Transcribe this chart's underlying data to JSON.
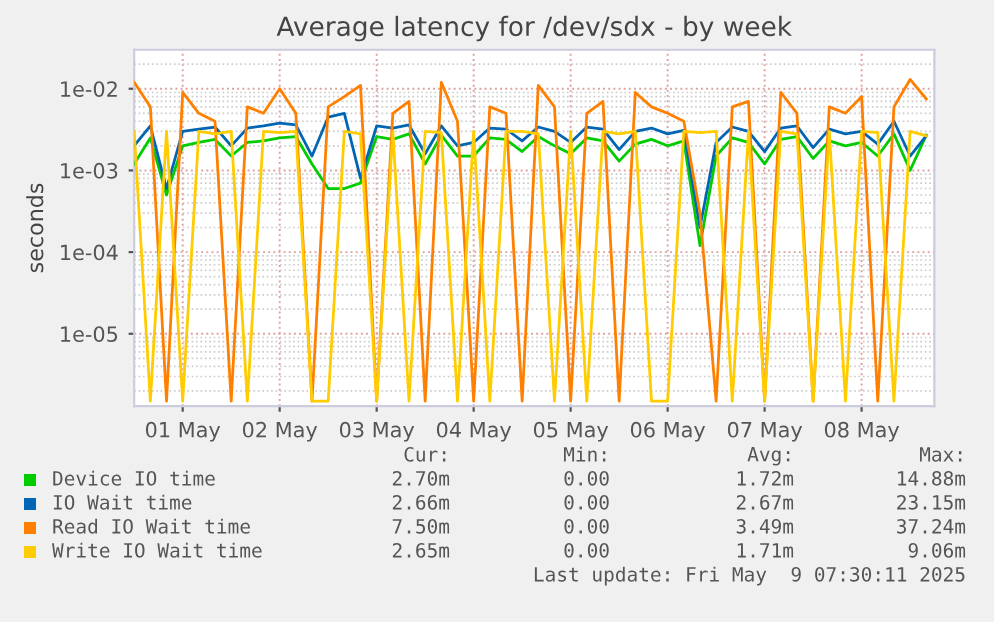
{
  "chart_data": {
    "type": "line",
    "title": "Average latency for /dev/sdx - by week",
    "ylabel": "seconds",
    "x": [
      "2025-05-01T00:00",
      "2025-05-01T04:00",
      "2025-05-01T08:00",
      "2025-05-01T12:00",
      "2025-05-01T16:00",
      "2025-05-01T20:00",
      "2025-05-02T00:00",
      "2025-05-02T04:00",
      "2025-05-02T08:00",
      "2025-05-02T12:00",
      "2025-05-02T16:00",
      "2025-05-02T20:00",
      "2025-05-03T00:00",
      "2025-05-03T04:00",
      "2025-05-03T08:00",
      "2025-05-03T12:00",
      "2025-05-03T16:00",
      "2025-05-03T20:00",
      "2025-05-04T00:00",
      "2025-05-04T04:00",
      "2025-05-04T08:00",
      "2025-05-04T12:00",
      "2025-05-04T16:00",
      "2025-05-04T20:00",
      "2025-05-05T00:00",
      "2025-05-05T04:00",
      "2025-05-05T08:00",
      "2025-05-05T12:00",
      "2025-05-05T16:00",
      "2025-05-05T20:00",
      "2025-05-06T00:00",
      "2025-05-06T04:00",
      "2025-05-06T08:00",
      "2025-05-06T12:00",
      "2025-05-06T16:00",
      "2025-05-06T20:00",
      "2025-05-07T00:00",
      "2025-05-07T04:00",
      "2025-05-07T08:00",
      "2025-05-07T12:00",
      "2025-05-07T16:00",
      "2025-05-07T20:00",
      "2025-05-08T00:00",
      "2025-05-08T04:00",
      "2025-05-08T08:00",
      "2025-05-08T12:00",
      "2025-05-08T16:00",
      "2025-05-08T20:00",
      "2025-05-09T00:00",
      "2025-05-09T04:00"
    ],
    "series": [
      {
        "name": "Device IO time",
        "color": "#00cc00",
        "values": [
          0.0012,
          0.0025,
          0.0005,
          0.002,
          0.0022,
          0.0024,
          0.0015,
          0.0022,
          0.0023,
          0.0025,
          0.0026,
          0.0012,
          0.0006,
          0.0006,
          0.0007,
          0.0026,
          0.0024,
          0.0028,
          0.0012,
          0.0027,
          0.0015,
          0.0015,
          0.0025,
          0.0024,
          0.0017,
          0.0026,
          0.002,
          0.0016,
          0.0025,
          0.0023,
          0.0013,
          0.0021,
          0.0024,
          0.002,
          0.0023,
          0.00012,
          0.0015,
          0.0025,
          0.0022,
          0.0012,
          0.0024,
          0.0026,
          0.0014,
          0.0023,
          0.002,
          0.0022,
          0.0015,
          0.0028,
          0.001,
          0.0027
        ]
      },
      {
        "name": "IO Wait time",
        "color": "#0066b3",
        "values": [
          0.002,
          0.0035,
          0.0006,
          0.003,
          0.0032,
          0.0034,
          0.002,
          0.0033,
          0.0035,
          0.0038,
          0.0036,
          0.0015,
          0.0045,
          0.005,
          0.0008,
          0.0035,
          0.0033,
          0.0036,
          0.0016,
          0.0035,
          0.002,
          0.0022,
          0.0033,
          0.0032,
          0.0023,
          0.0034,
          0.003,
          0.0022,
          0.0034,
          0.0032,
          0.0018,
          0.003,
          0.0033,
          0.0028,
          0.0031,
          0.0002,
          0.0022,
          0.0034,
          0.003,
          0.0017,
          0.0033,
          0.0035,
          0.0019,
          0.0032,
          0.0028,
          0.003,
          0.0021,
          0.004,
          0.0015,
          0.00266
        ]
      },
      {
        "name": "Read IO Wait time",
        "color": "#ff8000",
        "values": [
          0.012,
          0.006,
          1.5e-06,
          0.009,
          0.005,
          0.004,
          1.5e-06,
          0.006,
          0.005,
          0.01,
          0.005,
          1.5e-06,
          0.006,
          0.008,
          0.011,
          1.5e-06,
          0.005,
          0.007,
          1.5e-06,
          0.012,
          0.004,
          1.5e-06,
          0.006,
          0.005,
          1.5e-06,
          0.011,
          0.006,
          1.5e-06,
          0.005,
          0.007,
          1.5e-06,
          0.009,
          0.006,
          0.005,
          0.004,
          0.0003,
          1.5e-06,
          0.006,
          0.007,
          1.5e-06,
          0.009,
          0.005,
          1.5e-06,
          0.006,
          0.005,
          0.008,
          1.5e-06,
          0.006,
          0.013,
          0.0075
        ]
      },
      {
        "name": "Write IO Wait time",
        "color": "#ffcc00",
        "values": [
          0.003,
          1.5e-06,
          0.003,
          1.5e-06,
          0.003,
          0.0028,
          0.003,
          1.5e-06,
          0.003,
          0.0029,
          0.003,
          1.5e-06,
          1.5e-06,
          0.003,
          0.0028,
          1.5e-06,
          0.003,
          1.5e-06,
          0.003,
          0.0029,
          1.5e-06,
          0.003,
          1.5e-06,
          0.003,
          0.003,
          0.0028,
          1.5e-06,
          0.003,
          1.5e-06,
          0.003,
          0.0028,
          0.003,
          1.5e-06,
          1.5e-06,
          0.003,
          0.0029,
          0.003,
          1.5e-06,
          0.003,
          1.5e-06,
          0.003,
          0.0028,
          1.5e-06,
          0.003,
          1.5e-06,
          0.003,
          0.0029,
          1.5e-06,
          0.003,
          0.00265
        ]
      }
    ],
    "log": "y",
    "ylim": [
      1.3e-06,
      0.03
    ],
    "yticks": [
      {
        "value": 1e-05,
        "label": "1e-05"
      },
      {
        "value": 0.0001,
        "label": "1e-04"
      },
      {
        "value": 0.001,
        "label": "1e-03"
      },
      {
        "value": 0.01,
        "label": "1e-02"
      }
    ],
    "xlim": [
      "2025-05-01T00:00",
      "2025-05-09T06:00"
    ],
    "xticks": [
      {
        "value": "2025-05-01T12:00",
        "label": "01 May"
      },
      {
        "value": "2025-05-02T12:00",
        "label": "02 May"
      },
      {
        "value": "2025-05-03T12:00",
        "label": "03 May"
      },
      {
        "value": "2025-05-04T12:00",
        "label": "04 May"
      },
      {
        "value": "2025-05-05T12:00",
        "label": "05 May"
      },
      {
        "value": "2025-05-06T12:00",
        "label": "06 May"
      },
      {
        "value": "2025-05-07T12:00",
        "label": "07 May"
      },
      {
        "value": "2025-05-08T12:00",
        "label": "08 May"
      }
    ],
    "grid": true,
    "legend": "bottom",
    "marker": "none",
    "line_style": "solid",
    "annotations": [
      "Cur:",
      "Min:",
      "Avg:",
      "Max:",
      "2.70m",
      "0.00",
      "1.72m",
      "14.88m",
      "2.66m",
      "0.00",
      "2.67m",
      "23.15m",
      "7.50m",
      "0.00",
      "3.49m",
      "37.24m",
      "2.65m",
      "0.00",
      "1.71m",
      "9.06m",
      "Last update: Fri May  9 07:30:11 2025"
    ]
  }
}
